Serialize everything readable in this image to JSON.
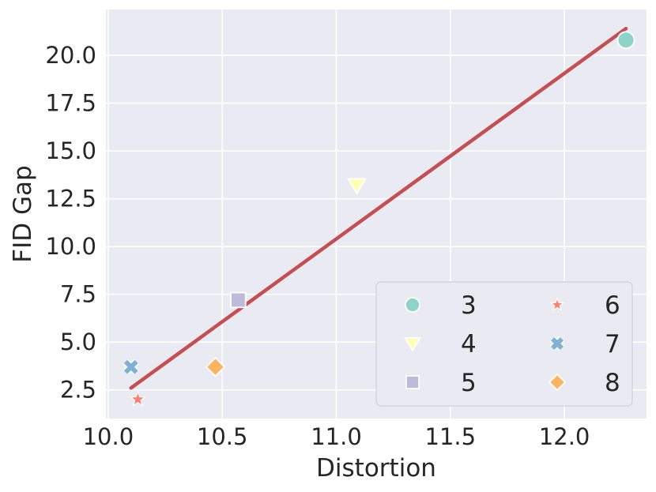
{
  "chart_data": {
    "type": "scatter",
    "xlabel": "Distortion",
    "ylabel": "FID Gap",
    "xlim": [
      9.99,
      12.36
    ],
    "ylim": [
      1.0,
      22.4
    ],
    "xticks": [
      10.0,
      10.5,
      11.0,
      11.5,
      12.0
    ],
    "xtick_labels": [
      "10.0",
      "10.5",
      "11.0",
      "11.5",
      "12.0"
    ],
    "yticks": [
      2.5,
      5.0,
      7.5,
      10.0,
      12.5,
      15.0,
      17.5,
      20.0
    ],
    "ytick_labels": [
      "2.5",
      "5.0",
      "7.5",
      "10.0",
      "12.5",
      "15.0",
      "17.5",
      "20.0"
    ],
    "grid": true,
    "legend_position": "lower-right",
    "series": [
      {
        "name": "3",
        "marker": "circle",
        "color": "#8dd3c7",
        "x": [
          12.27
        ],
        "y": [
          20.8
        ]
      },
      {
        "name": "4",
        "marker": "triangle-down",
        "color": "#ffffb3",
        "x": [
          11.09
        ],
        "y": [
          13.2
        ]
      },
      {
        "name": "5",
        "marker": "square",
        "color": "#bebada",
        "x": [
          10.57
        ],
        "y": [
          7.2
        ]
      },
      {
        "name": "6",
        "marker": "star",
        "color": "#fb8072",
        "x": [
          10.13
        ],
        "y": [
          2.0
        ]
      },
      {
        "name": "7",
        "marker": "x",
        "color": "#80b1d3",
        "x": [
          10.1
        ],
        "y": [
          3.7
        ]
      },
      {
        "name": "8",
        "marker": "diamond",
        "color": "#fdb462",
        "x": [
          10.47
        ],
        "y": [
          3.7
        ]
      }
    ],
    "fit_line": {
      "color": "#c44e52",
      "x": [
        10.1,
        12.27
      ],
      "y": [
        2.6,
        21.4
      ]
    }
  }
}
